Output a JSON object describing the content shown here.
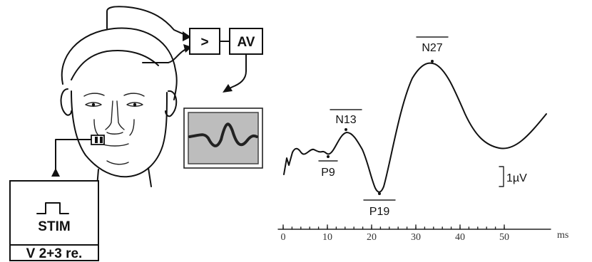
{
  "diagram": {
    "amplifier_symbol": ">",
    "averager_label": "AV",
    "stim_label": "STIM",
    "stim_setting": "V 2+3 re."
  },
  "chart_data": {
    "type": "line",
    "xlabel": "ms",
    "x_ticks": [
      0,
      10,
      20,
      30,
      40,
      50
    ],
    "tick_labels": [
      "0",
      "10",
      "20",
      "30",
      "40",
      "50"
    ],
    "xlim": [
      0,
      50
    ],
    "scale_bar_label": "1µV",
    "peaks": [
      {
        "label": "P9",
        "latency_ms": 9,
        "polarity": "positive",
        "overline": false
      },
      {
        "label": "N13",
        "latency_ms": 13,
        "polarity": "negative",
        "overline": true
      },
      {
        "label": "P19",
        "latency_ms": 19,
        "polarity": "positive",
        "overline": true
      },
      {
        "label": "N27",
        "latency_ms": 27,
        "polarity": "negative",
        "overline": true
      }
    ]
  }
}
